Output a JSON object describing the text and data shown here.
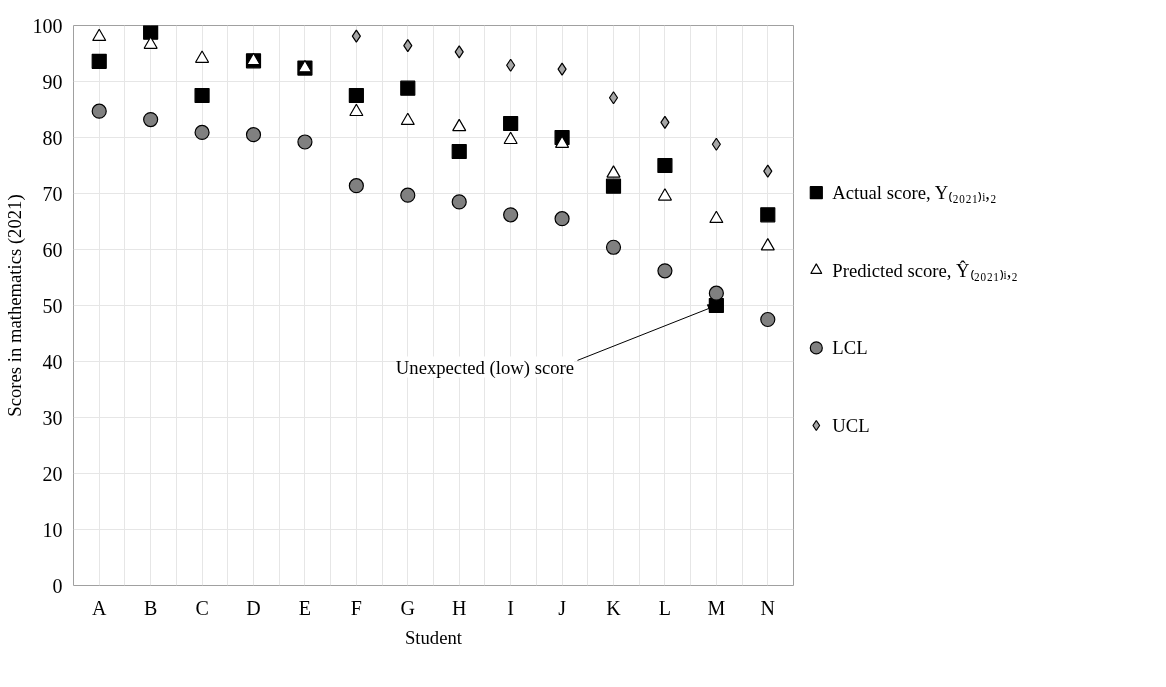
{
  "chart_data": {
    "type": "scatter",
    "xlabel": "Student",
    "ylabel": "Scores in mathematics (2021)",
    "categories": [
      "A",
      "B",
      "C",
      "D",
      "E",
      "F",
      "G",
      "H",
      "I",
      "J",
      "K",
      "L",
      "M",
      "N"
    ],
    "ylim": [
      0,
      100
    ],
    "yticks": [
      0,
      10,
      20,
      30,
      40,
      50,
      60,
      70,
      80,
      90,
      100
    ],
    "grid": true,
    "legend": "right",
    "series": [
      {
        "name": "Actual score, Y₍₂₀₂₁₎ᵢ,₂",
        "color": "#000000",
        "marker": "square",
        "values": [
          93.6,
          98.8,
          87.5,
          93.7,
          92.4,
          87.5,
          88.8,
          77.5,
          82.5,
          80.0,
          71.3,
          75.0,
          50.0,
          66.2
        ]
      },
      {
        "name": "Predicted score, Ŷ₍₂₀₂₁₎ᵢ,₂",
        "color": "#ffffff",
        "marker": "triangle",
        "values": [
          98.0,
          96.6,
          94.1,
          93.7,
          92.4,
          84.6,
          83.0,
          81.9,
          79.6,
          78.9,
          73.6,
          69.5,
          65.5,
          60.6
        ]
      },
      {
        "name": "LCL",
        "color": "#808080",
        "marker": "circle",
        "values": [
          84.7,
          83.2,
          80.9,
          80.5,
          79.2,
          71.4,
          69.7,
          68.5,
          66.2,
          65.5,
          60.4,
          56.2,
          52.2,
          47.5
        ]
      },
      {
        "name": "UCL",
        "color": "#a6a6a6",
        "marker": "diamond",
        "values": [
          null,
          null,
          null,
          null,
          null,
          98.1,
          96.4,
          95.3,
          92.9,
          92.2,
          87.1,
          82.7,
          78.8,
          74.0
        ]
      }
    ],
    "annotations": [
      {
        "text": "Unexpected (low) score",
        "x": "M",
        "y": 50
      }
    ]
  }
}
